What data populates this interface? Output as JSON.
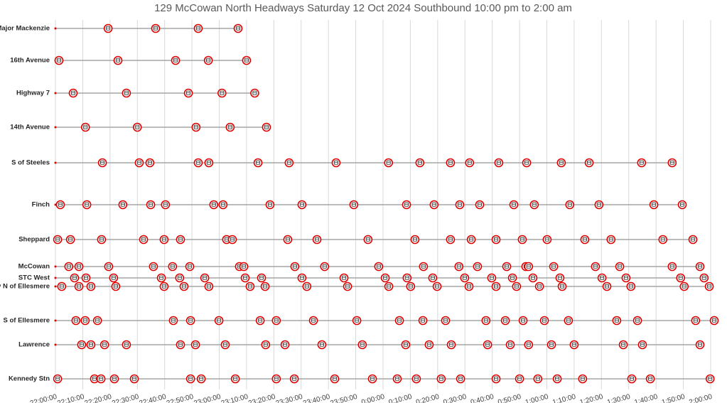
{
  "chart_data": {
    "type": "timeline",
    "title": "129 McCowan North Headways Saturday 12 Oct 2024 Southbound 10:00 pm to 2:00 am",
    "xlim": [
      0,
      240
    ],
    "xticks": [
      {
        "value": 0,
        "label": "22:00:00"
      },
      {
        "value": 10,
        "label": "22:10:00"
      },
      {
        "value": 20,
        "label": "22:20:00"
      },
      {
        "value": 30,
        "label": "22:30:00"
      },
      {
        "value": 40,
        "label": "22:40:00"
      },
      {
        "value": 50,
        "label": "22:50:00"
      },
      {
        "value": 60,
        "label": "23:00:00"
      },
      {
        "value": 70,
        "label": "23:10:00"
      },
      {
        "value": 80,
        "label": "23:20:00"
      },
      {
        "value": 90,
        "label": "23:30:00"
      },
      {
        "value": 100,
        "label": "23:40:00"
      },
      {
        "value": 110,
        "label": "23:50:00"
      },
      {
        "value": 120,
        "label": "0:00:00"
      },
      {
        "value": 130,
        "label": "0:10:00"
      },
      {
        "value": 140,
        "label": "0:20:00"
      },
      {
        "value": 150,
        "label": "0:30:00"
      },
      {
        "value": 160,
        "label": "0:40:00"
      },
      {
        "value": 170,
        "label": "0:50:00"
      },
      {
        "value": 180,
        "label": "1:00:00"
      },
      {
        "value": 190,
        "label": "1:10:00"
      },
      {
        "value": 200,
        "label": "1:20:00"
      },
      {
        "value": 210,
        "label": "1:30:00"
      },
      {
        "value": 220,
        "label": "1:40:00"
      },
      {
        "value": 230,
        "label": "1:50:00"
      },
      {
        "value": 240,
        "label": "2:00:00"
      }
    ],
    "grid": true,
    "marker_color": "#e00000",
    "line_color": "#a6a6a6",
    "series": [
      {
        "name": "S of Major Mackenzie",
        "values": [
          19.3,
          36.7,
          52.3,
          66.9
        ]
      },
      {
        "name": "16th Avenue",
        "values": [
          1.3,
          22.9,
          44,
          56,
          70
        ]
      },
      {
        "name": "Highway 7",
        "values": [
          6.5,
          26,
          48.7,
          61,
          73
        ]
      },
      {
        "name": "14th Avenue",
        "values": [
          11,
          30,
          51.5,
          64,
          77.3
        ]
      },
      {
        "name": "S of Steeles",
        "values": [
          17.2,
          30.7,
          34.6,
          52.3,
          56.2,
          74.2,
          85.6,
          102.8,
          122,
          133.5,
          144.7,
          151.7,
          162.4,
          172.6,
          185.3,
          195.5,
          214.7,
          225.9
        ]
      },
      {
        "name": "Finch",
        "values": [
          1.8,
          11.5,
          24.7,
          34.9,
          40.3,
          58,
          61.4,
          78.6,
          90.3,
          109.3,
          128.6,
          138.7,
          148.1,
          155.4,
          167.9,
          175.4,
          188.4,
          199.1,
          219.2,
          229.6
        ]
      },
      {
        "name": "Sheppard",
        "values": [
          0.8,
          5.5,
          16.9,
          32.3,
          39.8,
          45.8,
          62.7,
          64.8,
          85.1,
          95.8,
          114.5,
          131.7,
          144.7,
          152.3,
          161.4,
          171,
          180.1,
          193.9,
          203.5,
          222.5,
          233.5
        ]
      },
      {
        "name": "McCowan",
        "values": [
          4.9,
          8.6,
          19.5,
          35.9,
          42.9,
          49.2,
          67.4,
          69,
          87.7,
          98.6,
          118.4,
          134.8,
          147.8,
          154.6,
          165.3,
          172.3,
          173.3,
          182.5,
          197.8,
          206.7,
          225.9,
          236.1
        ]
      },
      {
        "name": "STC West",
        "values": [
          7,
          11.2,
          21.3,
          38.8,
          45.5,
          54.7,
          69.5,
          75.5,
          90.3,
          105.7,
          120.8,
          128.8,
          138.2,
          149.9,
          159.8,
          167.4,
          174.9,
          184.8,
          200.2,
          209,
          229,
          237.6
        ]
      },
      {
        "name": "Brimley N of Ellesmere",
        "values": [
          2.3,
          8.6,
          13,
          22.1,
          39.8,
          47.1,
          56.2,
          71.3,
          76.8,
          92.1,
          107,
          122.1,
          130.1,
          139.8,
          151.5,
          161.4,
          168.9,
          177.3,
          185.6,
          202,
          210.8,
          230.3,
          239.5
        ]
      },
      {
        "name": "S of Ellesmere",
        "values": [
          7.5,
          10.9,
          15.4,
          43.2,
          49.5,
          59.9,
          75,
          80.9,
          94.5,
          110.4,
          126,
          134.6,
          142.9,
          157.7,
          164.8,
          171.3,
          179.1,
          187.9,
          205.6,
          213.2,
          234.5,
          241.3
        ]
      },
      {
        "name": "Lawrence",
        "values": [
          9.6,
          13,
          18,
          26,
          45.8,
          51.3,
          62.2,
          77,
          84.1,
          97.6,
          112.4,
          128.3,
          136.9,
          145,
          158.3,
          166.6,
          173.3,
          181.7,
          190,
          208,
          215,
          236.1
        ]
      },
      {
        "name": "Kennedy Stn",
        "values": [
          0.8,
          14.3,
          16.7,
          21.6,
          28.9,
          49.5,
          53.4,
          65.9,
          80.9,
          87.5,
          102.3,
          116.1,
          125.2,
          132.2,
          141.3,
          148.4,
          161.4,
          170,
          176.7,
          183.8,
          193.1,
          211.1,
          217.9,
          239.8
        ]
      }
    ]
  }
}
